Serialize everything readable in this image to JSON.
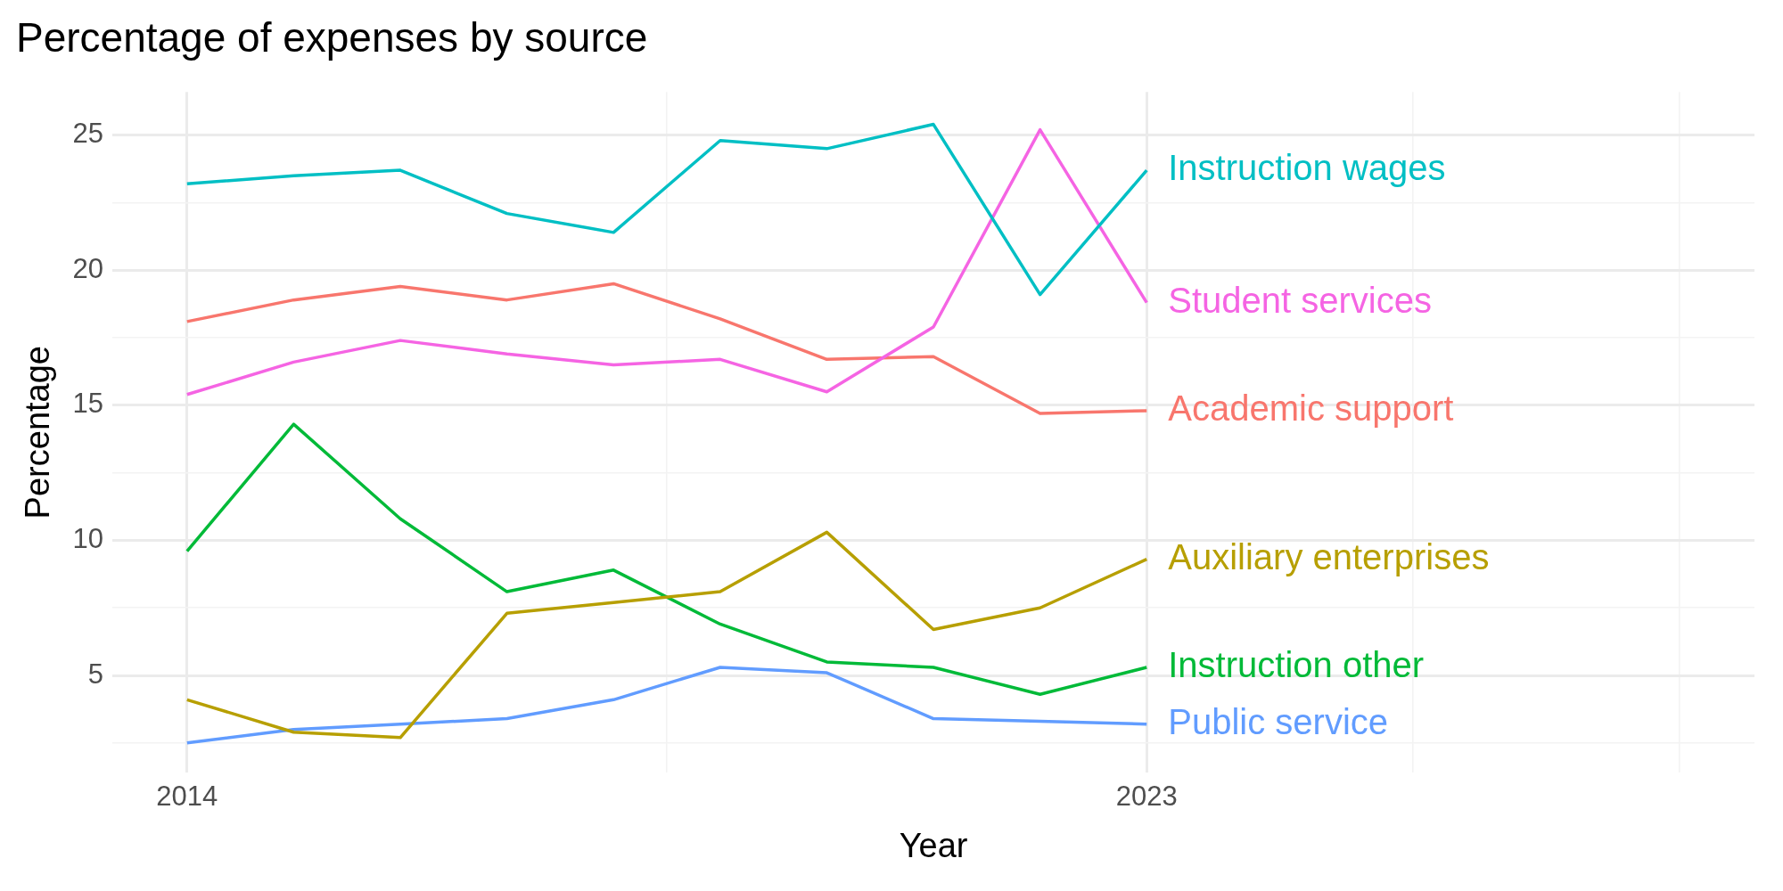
{
  "chart_data": {
    "type": "line",
    "title": "Percentage of expenses by source",
    "xlabel": "Year",
    "ylabel": "Percentage",
    "x": [
      2014,
      2015,
      2016,
      2017,
      2018,
      2019,
      2020,
      2021,
      2022,
      2023
    ],
    "xlim": [
      2013.3,
      2028.7
    ],
    "xticks": [
      2014,
      {
        "value": 2018.5,
        "label": null
      },
      2023,
      {
        "value": 2025.5,
        "label": null
      },
      {
        "value": 2028,
        "label": null
      }
    ],
    "ylim": [
      1.4,
      26.6
    ],
    "yticks": [
      {
        "value": 2.5,
        "label": null
      },
      5,
      {
        "value": 7.5,
        "label": null
      },
      10,
      {
        "value": 12.5,
        "label": null
      },
      15,
      {
        "value": 17.5,
        "label": null
      },
      20,
      {
        "value": 22.5,
        "label": null
      },
      25
    ],
    "grid": true,
    "legend": false,
    "marker": "none",
    "line_style": "solid",
    "series": [
      {
        "name": "Instruction wages",
        "color": "#00bfc4",
        "values": [
          23.2,
          23.5,
          23.7,
          22.1,
          21.4,
          24.8,
          24.5,
          25.4,
          19.1,
          23.7
        ]
      },
      {
        "name": "Student services",
        "color": "#f564e3",
        "values": [
          15.4,
          16.6,
          17.4,
          16.9,
          16.5,
          16.7,
          15.5,
          17.9,
          25.2,
          18.8
        ]
      },
      {
        "name": "Academic support",
        "color": "#f8766d",
        "values": [
          18.1,
          18.9,
          19.4,
          18.9,
          19.5,
          18.2,
          16.7,
          16.8,
          14.7,
          14.8
        ]
      },
      {
        "name": "Auxiliary enterprises",
        "color": "#b79f00",
        "values": [
          4.1,
          2.9,
          2.7,
          7.3,
          7.7,
          8.1,
          10.3,
          6.7,
          7.5,
          9.3
        ]
      },
      {
        "name": "Instruction other",
        "color": "#00ba38",
        "values": [
          9.6,
          14.3,
          10.8,
          8.1,
          8.9,
          6.9,
          5.5,
          5.3,
          4.3,
          5.3
        ]
      },
      {
        "name": "Public service",
        "color": "#619cff",
        "values": [
          2.5,
          3.0,
          3.2,
          3.4,
          4.1,
          5.3,
          5.1,
          3.4,
          3.3,
          3.2
        ]
      }
    ]
  }
}
